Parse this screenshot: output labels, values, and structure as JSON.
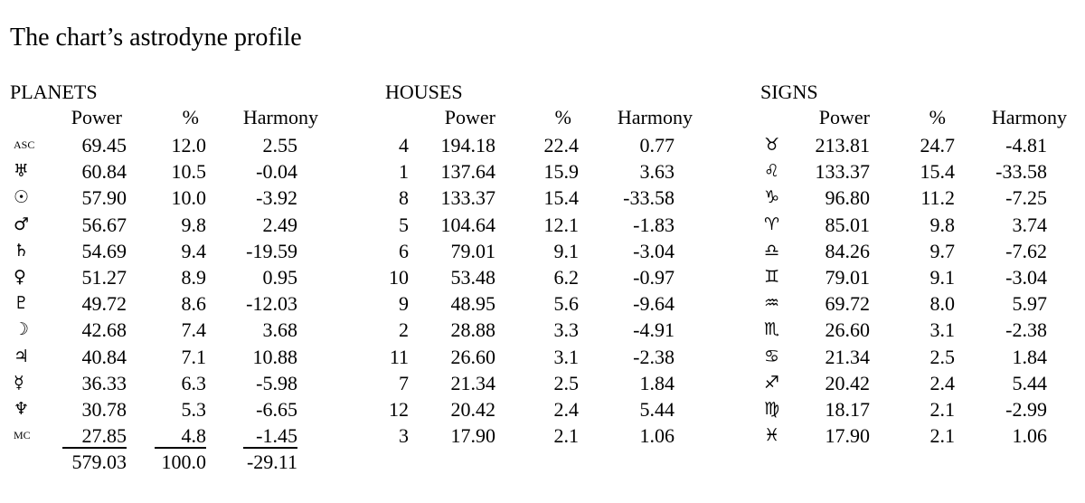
{
  "title": "The chart’s astrodyne profile",
  "planets": {
    "heading": "PLANETS",
    "columns": [
      "Power",
      "%",
      "Harmony"
    ],
    "rows": [
      {
        "symbol": "ASC",
        "power": "69.45",
        "percent": "12.0",
        "harmony": "2.55"
      },
      {
        "symbol": "♅",
        "power": "60.84",
        "percent": "10.5",
        "harmony": "-0.04"
      },
      {
        "symbol": "☉",
        "power": "57.90",
        "percent": "10.0",
        "harmony": "-3.92"
      },
      {
        "symbol": "♂",
        "power": "56.67",
        "percent": "9.8",
        "harmony": "2.49"
      },
      {
        "symbol": "♄",
        "power": "54.69",
        "percent": "9.4",
        "harmony": "-19.59"
      },
      {
        "symbol": "♀",
        "power": "51.27",
        "percent": "8.9",
        "harmony": "0.95"
      },
      {
        "symbol": "♇",
        "power": "49.72",
        "percent": "8.6",
        "harmony": "-12.03"
      },
      {
        "symbol": "☽",
        "power": "42.68",
        "percent": "7.4",
        "harmony": "3.68"
      },
      {
        "symbol": "♃",
        "power": "40.84",
        "percent": "7.1",
        "harmony": "10.88"
      },
      {
        "symbol": "☿",
        "power": "36.33",
        "percent": "6.3",
        "harmony": "-5.98"
      },
      {
        "symbol": "♆",
        "power": "30.78",
        "percent": "5.3",
        "harmony": "-6.65"
      },
      {
        "symbol": "MC",
        "power": "27.85",
        "percent": "4.8",
        "harmony": "-1.45"
      }
    ],
    "totals": {
      "power": "579.03",
      "percent": "100.0",
      "harmony": "-29.11"
    }
  },
  "houses": {
    "heading": "HOUSES",
    "columns": [
      "Power",
      "%",
      "Harmony"
    ],
    "rows": [
      {
        "house": "4",
        "power": "194.18",
        "percent": "22.4",
        "harmony": "0.77"
      },
      {
        "house": "1",
        "power": "137.64",
        "percent": "15.9",
        "harmony": "3.63"
      },
      {
        "house": "8",
        "power": "133.37",
        "percent": "15.4",
        "harmony": "-33.58"
      },
      {
        "house": "5",
        "power": "104.64",
        "percent": "12.1",
        "harmony": "-1.83"
      },
      {
        "house": "6",
        "power": "79.01",
        "percent": "9.1",
        "harmony": "-3.04"
      },
      {
        "house": "10",
        "power": "53.48",
        "percent": "6.2",
        "harmony": "-0.97"
      },
      {
        "house": "9",
        "power": "48.95",
        "percent": "5.6",
        "harmony": "-9.64"
      },
      {
        "house": "2",
        "power": "28.88",
        "percent": "3.3",
        "harmony": "-4.91"
      },
      {
        "house": "11",
        "power": "26.60",
        "percent": "3.1",
        "harmony": "-2.38"
      },
      {
        "house": "7",
        "power": "21.34",
        "percent": "2.5",
        "harmony": "1.84"
      },
      {
        "house": "12",
        "power": "20.42",
        "percent": "2.4",
        "harmony": "5.44"
      },
      {
        "house": "3",
        "power": "17.90",
        "percent": "2.1",
        "harmony": "1.06"
      }
    ]
  },
  "signs": {
    "heading": "SIGNS",
    "columns": [
      "Power",
      "%",
      "Harmony"
    ],
    "rows": [
      {
        "symbol": "♉",
        "power": "213.81",
        "percent": "24.7",
        "harmony": "-4.81"
      },
      {
        "symbol": "♌",
        "power": "133.37",
        "percent": "15.4",
        "harmony": "-33.58"
      },
      {
        "symbol": "♑",
        "power": "96.80",
        "percent": "11.2",
        "harmony": "-7.25"
      },
      {
        "symbol": "♈",
        "power": "85.01",
        "percent": "9.8",
        "harmony": "3.74"
      },
      {
        "symbol": "♎",
        "power": "84.26",
        "percent": "9.7",
        "harmony": "-7.62"
      },
      {
        "symbol": "♊",
        "power": "79.01",
        "percent": "9.1",
        "harmony": "-3.04"
      },
      {
        "symbol": "♒",
        "power": "69.72",
        "percent": "8.0",
        "harmony": "5.97"
      },
      {
        "symbol": "♏",
        "power": "26.60",
        "percent": "3.1",
        "harmony": "-2.38"
      },
      {
        "symbol": "♋",
        "power": "21.34",
        "percent": "2.5",
        "harmony": "1.84"
      },
      {
        "symbol": "♐",
        "power": "20.42",
        "percent": "2.4",
        "harmony": "5.44"
      },
      {
        "symbol": "♍",
        "power": "18.17",
        "percent": "2.1",
        "harmony": "-2.99"
      },
      {
        "symbol": "♓",
        "power": "17.90",
        "percent": "2.1",
        "harmony": "1.06"
      }
    ]
  }
}
